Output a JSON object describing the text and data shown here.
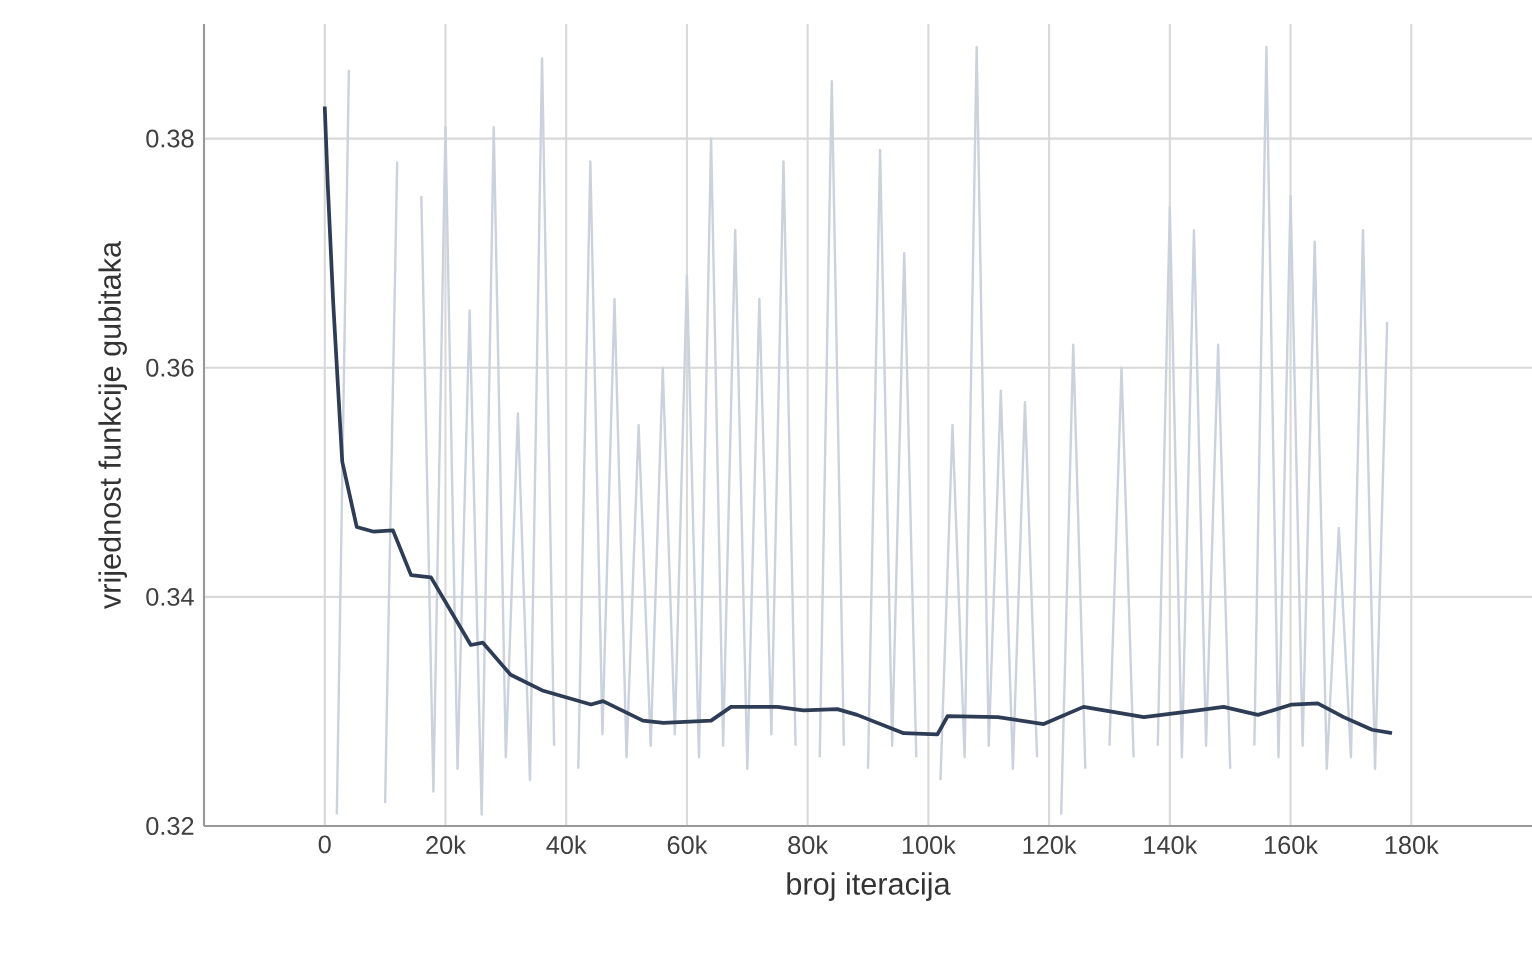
{
  "chart_data": {
    "type": "line",
    "xlabel": "broj iteracija",
    "ylabel": "vrijednost funkcije gubitaka",
    "xlim": [
      -20000,
      200000
    ],
    "ylim": [
      0.32,
      0.39
    ],
    "xticks": [
      0,
      {
        "value": 20000,
        "label": "20k"
      },
      {
        "value": 40000,
        "label": "40k"
      },
      {
        "value": 60000,
        "label": "60k"
      },
      {
        "value": 80000,
        "label": "80k"
      },
      {
        "value": 100000,
        "label": "100k"
      },
      {
        "value": 120000,
        "label": "120k"
      },
      {
        "value": 140000,
        "label": "140k"
      },
      {
        "value": 160000,
        "label": "160k"
      },
      {
        "value": 180000,
        "label": "180k"
      }
    ],
    "yticks": [
      0.32,
      0.34,
      0.36,
      0.38
    ],
    "grid": true,
    "marker": "none",
    "line_style": "solid",
    "series": [
      {
        "color": "#cbd2de",
        "x": [
          2000,
          4000,
          6000,
          8000,
          10000,
          12000,
          14000,
          16000,
          18000,
          20000,
          22000,
          24000,
          26000,
          28000,
          30000,
          32000,
          34000,
          36000,
          38000,
          40000,
          42000,
          44000,
          46000,
          48000,
          50000,
          52000,
          54000,
          56000,
          58000,
          60000,
          62000,
          64000,
          66000,
          68000,
          70000,
          72000,
          74000,
          76000,
          78000,
          80000,
          82000,
          84000,
          86000,
          88000,
          90000,
          92000,
          94000,
          96000,
          98000,
          100000,
          102000,
          104000,
          106000,
          108000,
          110000,
          112000,
          114000,
          116000,
          118000,
          120000,
          122000,
          124000,
          126000,
          128000,
          130000,
          132000,
          134000,
          136000,
          138000,
          140000,
          142000,
          144000,
          146000,
          148000,
          150000,
          152000,
          154000,
          156000,
          158000,
          160000,
          162000,
          164000,
          166000,
          168000,
          170000,
          172000,
          174000,
          176000
        ],
        "values": [
          0.321,
          0.386,
          null,
          null,
          0.322,
          0.378,
          null,
          0.375,
          0.323,
          0.381,
          0.325,
          0.365,
          0.321,
          0.381,
          0.326,
          0.356,
          0.324,
          0.387,
          0.327,
          null,
          0.325,
          0.378,
          0.328,
          0.366,
          0.326,
          0.355,
          0.327,
          0.36,
          0.328,
          0.368,
          0.326,
          0.38,
          0.327,
          0.372,
          0.325,
          0.366,
          0.328,
          0.378,
          0.327,
          null,
          0.326,
          0.385,
          0.327,
          null,
          0.325,
          0.379,
          0.327,
          0.37,
          0.326,
          null,
          0.324,
          0.355,
          0.326,
          0.388,
          0.327,
          0.358,
          0.325,
          0.357,
          0.326,
          null,
          0.321,
          0.362,
          0.325,
          null,
          0.327,
          0.36,
          0.326,
          null,
          0.327,
          0.374,
          0.326,
          0.372,
          0.327,
          0.362,
          0.325,
          null,
          0.327,
          0.388,
          0.326,
          0.375,
          0.327,
          0.371,
          0.325,
          0.346,
          0.326,
          0.372,
          0.325,
          0.364
        ]
      },
      {
        "color": "#2e3d55",
        "x": [
          0,
          500,
          1400,
          2900,
          5300,
          8000,
          11300,
          14300,
          17600,
          24200,
          26200,
          30800,
          36200,
          44100,
          46100,
          52700,
          56100,
          64000,
          67300,
          75000,
          79300,
          84900,
          88200,
          95900,
          101500,
          103200,
          111500,
          119100,
          125700,
          135700,
          144600,
          148900,
          154600,
          160200,
          164500,
          168800,
          173500,
          176800
        ],
        "values": [
          0.3828,
          0.376,
          0.3657,
          0.3518,
          0.3461,
          0.3457,
          0.3458,
          0.3419,
          0.3417,
          0.3358,
          0.336,
          0.3332,
          0.3318,
          0.3306,
          0.3309,
          0.3292,
          0.329,
          0.3292,
          0.3304,
          0.3304,
          0.3301,
          0.3302,
          0.3297,
          0.3281,
          0.328,
          0.3296,
          0.3295,
          0.3289,
          0.3304,
          0.3295,
          0.3301,
          0.3304,
          0.3297,
          0.3306,
          0.3307,
          0.3295,
          0.3284,
          0.3281
        ]
      }
    ]
  }
}
